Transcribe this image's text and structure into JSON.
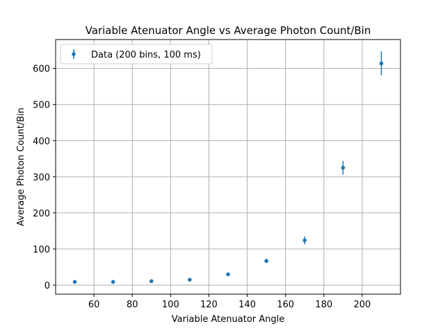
{
  "chart_data": {
    "type": "scatter",
    "title": "Variable Atenuator Angle vs Average Photon Count/Bin",
    "xlabel": "Variable Atenuator Angle",
    "ylabel": "Average Photon Count/Bin",
    "xlim": [
      40,
      220
    ],
    "ylim": [
      -25,
      680
    ],
    "xticks": [
      60,
      80,
      100,
      120,
      140,
      160,
      180,
      200
    ],
    "yticks": [
      0,
      100,
      200,
      300,
      400,
      500,
      600
    ],
    "grid": true,
    "legend_position": "upper-left",
    "series": [
      {
        "name": "Data (200 bins, 100 ms)",
        "color": "#1f77b4",
        "marker": "circle",
        "errorbars": true,
        "x": [
          50,
          70,
          90,
          110,
          130,
          150,
          170,
          190,
          210
        ],
        "y": [
          9,
          9,
          11,
          15,
          30,
          67,
          124,
          325,
          614
        ],
        "yerr": [
          1.5,
          1.5,
          2,
          2.5,
          4,
          6,
          11,
          19,
          33
        ]
      }
    ]
  }
}
